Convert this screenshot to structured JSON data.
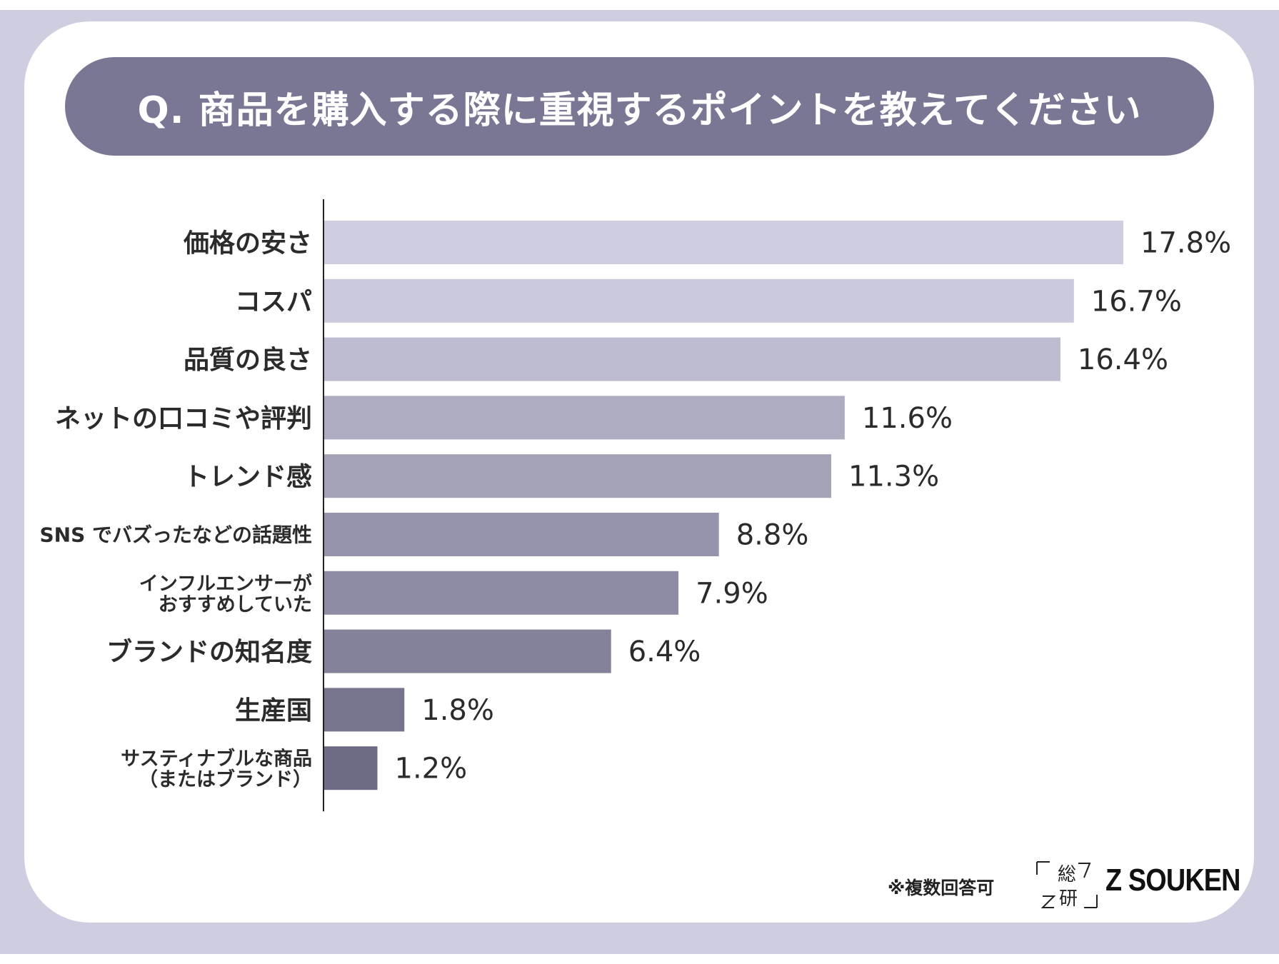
{
  "header": {
    "title": "Q. 商品を購入する際に重視するポイントを教えてください"
  },
  "chart_data": {
    "type": "bar",
    "orientation": "horizontal",
    "title": "Q. 商品を購入する際に重視するポイントを教えてください",
    "categories": [
      [
        "価格の安さ"
      ],
      [
        "コスパ"
      ],
      [
        "品質の良さ"
      ],
      [
        "ネットの口コミや評判"
      ],
      [
        "トレンド感"
      ],
      [
        "SNS でバズったなどの話題性"
      ],
      [
        "インフルエンサーが",
        "おすすめしていた"
      ],
      [
        "ブランドの知名度"
      ],
      [
        "生産国"
      ],
      [
        "サスティナブルな商品",
        "（またはブランド）"
      ]
    ],
    "values": [
      17.8,
      16.7,
      16.4,
      11.6,
      11.3,
      8.8,
      7.9,
      6.4,
      1.8,
      1.2
    ],
    "value_labels": [
      "17.8%",
      "16.7%",
      "16.4%",
      "11.6%",
      "11.3%",
      "8.8%",
      "7.9%",
      "6.4%",
      "1.8%",
      "1.2%"
    ],
    "bar_colors": [
      "#cfcde0",
      "#cbc9dc",
      "#bdbbd0",
      "#aeacc0",
      "#a4a2b6",
      "#9594ac",
      "#8e8ca4",
      "#84829a",
      "#77758e",
      "#6d6b85"
    ],
    "xlim": [
      0,
      17.8
    ],
    "grid": false,
    "legend": "none"
  },
  "footer": {
    "note": "※複数回答可",
    "logo_mark_top": "総",
    "logo_mark_bottom": "研",
    "logo_text": "Z SOUKEN"
  }
}
